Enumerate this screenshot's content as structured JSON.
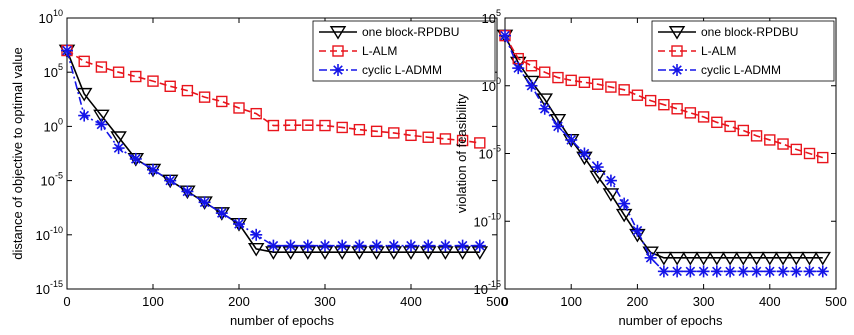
{
  "chart_data": [
    {
      "type": "line",
      "xlabel": "number of epochs",
      "ylabel": "distance of objective to optimal value",
      "xlim": [
        0,
        500
      ],
      "ylim": [
        1e-15,
        10000000000.0
      ],
      "yscale": "log",
      "grid": false,
      "legend_position": "top-right",
      "x_ticks": [
        0,
        100,
        200,
        300,
        400,
        500
      ],
      "x_tick_labels": [
        "0",
        "100",
        "200",
        "300",
        "400",
        "500"
      ],
      "y_ticks": [
        {
          "value": 10000000000.0,
          "base": "10",
          "exp": "10"
        },
        {
          "value": 100000.0,
          "base": "10",
          "exp": "5"
        },
        {
          "value": 1,
          "base": "10",
          "exp": "0"
        },
        {
          "value": 1e-05,
          "base": "10",
          "exp": "-5"
        },
        {
          "value": 1e-10,
          "base": "10",
          "exp": "-10"
        },
        {
          "value": 1e-15,
          "base": "10",
          "exp": "-15"
        }
      ],
      "y_tick_labels": [
        "10^10",
        "10^5",
        "10^0",
        "10^-5",
        "10^-10",
        "10^-15"
      ],
      "series": [
        {
          "name": "one block-RPDBU",
          "color": "#000000",
          "marker": "triangle-down",
          "dash": "solid",
          "x": [
            0,
            20,
            40,
            60,
            80,
            100,
            120,
            140,
            160,
            180,
            200,
            220,
            240,
            260,
            280,
            300,
            320,
            340,
            360,
            380,
            400,
            420,
            440,
            460,
            480
          ],
          "y": [
            10000000.0,
            1000.0,
            10.0,
            0.1,
            0.001,
            0.0001,
            1e-05,
            1e-06,
            1e-07,
            1e-08,
            1e-09,
            5e-12,
            2.5e-12,
            2.5e-12,
            2.5e-12,
            2.5e-12,
            2.5e-12,
            2.5e-12,
            2.5e-12,
            2.5e-12,
            2.5e-12,
            2.5e-12,
            2.5e-12,
            2.5e-12,
            2.5e-12
          ]
        },
        {
          "name": "L-ALM",
          "color": "#e8141c",
          "marker": "square",
          "dash": "dashed",
          "x": [
            0,
            20,
            40,
            60,
            80,
            100,
            120,
            140,
            160,
            180,
            200,
            220,
            240,
            260,
            280,
            300,
            320,
            340,
            360,
            380,
            400,
            420,
            440,
            460,
            480
          ],
          "y": [
            10000000.0,
            1000000.0,
            300000.0,
            100000.0,
            40000.0,
            15000.0,
            5000.0,
            2000.0,
            500.0,
            200.0,
            50.0,
            15.0,
            1.2,
            1.3,
            1.3,
            1.2,
            0.8,
            0.5,
            0.35,
            0.25,
            0.15,
            0.1,
            0.07,
            0.05,
            0.03
          ]
        },
        {
          "name": "cyclic L-ADMM",
          "color": "#1515e8",
          "marker": "asterisk",
          "dash": "dashdot",
          "x": [
            0,
            20,
            40,
            60,
            80,
            100,
            120,
            140,
            160,
            180,
            200,
            220,
            240,
            260,
            280,
            300,
            320,
            340,
            360,
            380,
            400,
            420,
            440,
            460,
            480
          ],
          "y": [
            10000000.0,
            10.0,
            1.5,
            0.01,
            0.001,
            0.0001,
            1e-05,
            1e-06,
            1e-07,
            1e-08,
            1e-09,
            1e-10,
            1e-11,
            1e-11,
            1e-11,
            1e-11,
            1e-11,
            1e-11,
            1e-11,
            1e-11,
            1e-11,
            1e-11,
            1e-11,
            1e-11,
            1e-11
          ]
        }
      ]
    },
    {
      "type": "line",
      "xlabel": "number of epochs",
      "ylabel": "violation of feasibility",
      "xlim": [
        0,
        500
      ],
      "ylim": [
        1e-15,
        100000.0
      ],
      "yscale": "log",
      "grid": false,
      "legend_position": "top-right",
      "x_ticks": [
        0,
        100,
        200,
        300,
        400,
        500
      ],
      "x_tick_labels": [
        "0",
        "100",
        "200",
        "300",
        "400",
        "500"
      ],
      "y_ticks": [
        {
          "value": 100000.0,
          "base": "10",
          "exp": "5"
        },
        {
          "value": 1,
          "base": "10",
          "exp": "0"
        },
        {
          "value": 1e-05,
          "base": "10",
          "exp": "-5"
        },
        {
          "value": 1e-10,
          "base": "10",
          "exp": "-10"
        },
        {
          "value": 1e-15,
          "base": "10",
          "exp": "-15"
        }
      ],
      "y_tick_labels": [
        "10^5",
        "10^0",
        "10^-5",
        "10^-10",
        "10^-15"
      ],
      "series": [
        {
          "name": "one block-RPDBU",
          "color": "#000000",
          "marker": "triangle-down",
          "dash": "solid",
          "x": [
            0,
            20,
            40,
            60,
            80,
            100,
            120,
            140,
            160,
            180,
            200,
            220,
            240,
            260,
            280,
            300,
            320,
            340,
            360,
            380,
            400,
            420,
            440,
            460,
            480
          ],
          "y": [
            5000.0,
            50.0,
            2.0,
            0.1,
            0.003,
            0.0001,
            5e-06,
            2e-07,
            1e-08,
            3e-10,
            1e-11,
            5e-13,
            2e-13,
            2e-13,
            2e-13,
            2e-13,
            2e-13,
            2e-13,
            2e-13,
            2e-13,
            2e-13,
            2e-13,
            2e-13,
            2e-13,
            2e-13
          ]
        },
        {
          "name": "L-ALM",
          "color": "#e8141c",
          "marker": "square",
          "dash": "dashed",
          "x": [
            0,
            20,
            40,
            60,
            80,
            100,
            120,
            140,
            160,
            180,
            200,
            220,
            240,
            260,
            280,
            300,
            320,
            340,
            360,
            380,
            400,
            420,
            440,
            460,
            480
          ],
          "y": [
            5000.0,
            100.0,
            30.0,
            10.0,
            4.0,
            2.5,
            1.8,
            1.3,
            0.8,
            0.5,
            0.2,
            0.08,
            0.04,
            0.02,
            0.01,
            0.005,
            0.002,
            0.001,
            0.0005,
            0.0002,
            0.0001,
            5e-05,
            2e-05,
            1e-05,
            5e-06
          ]
        },
        {
          "name": "cyclic L-ADMM",
          "color": "#1515e8",
          "marker": "asterisk",
          "dash": "dashdot",
          "x": [
            0,
            20,
            40,
            60,
            80,
            100,
            120,
            140,
            160,
            180,
            200,
            220,
            240,
            260,
            280,
            300,
            320,
            340,
            360,
            380,
            400,
            420,
            440,
            460,
            480
          ],
          "y": [
            5000.0,
            20.0,
            1.0,
            0.02,
            0.001,
            0.0001,
            1e-05,
            1e-06,
            1e-07,
            2e-09,
            2e-11,
            2e-13,
            2e-14,
            2e-14,
            2e-14,
            2e-14,
            2e-14,
            2e-14,
            2e-14,
            2e-14,
            2e-14,
            2e-14,
            2e-14,
            2e-14,
            2e-14
          ]
        }
      ]
    }
  ]
}
